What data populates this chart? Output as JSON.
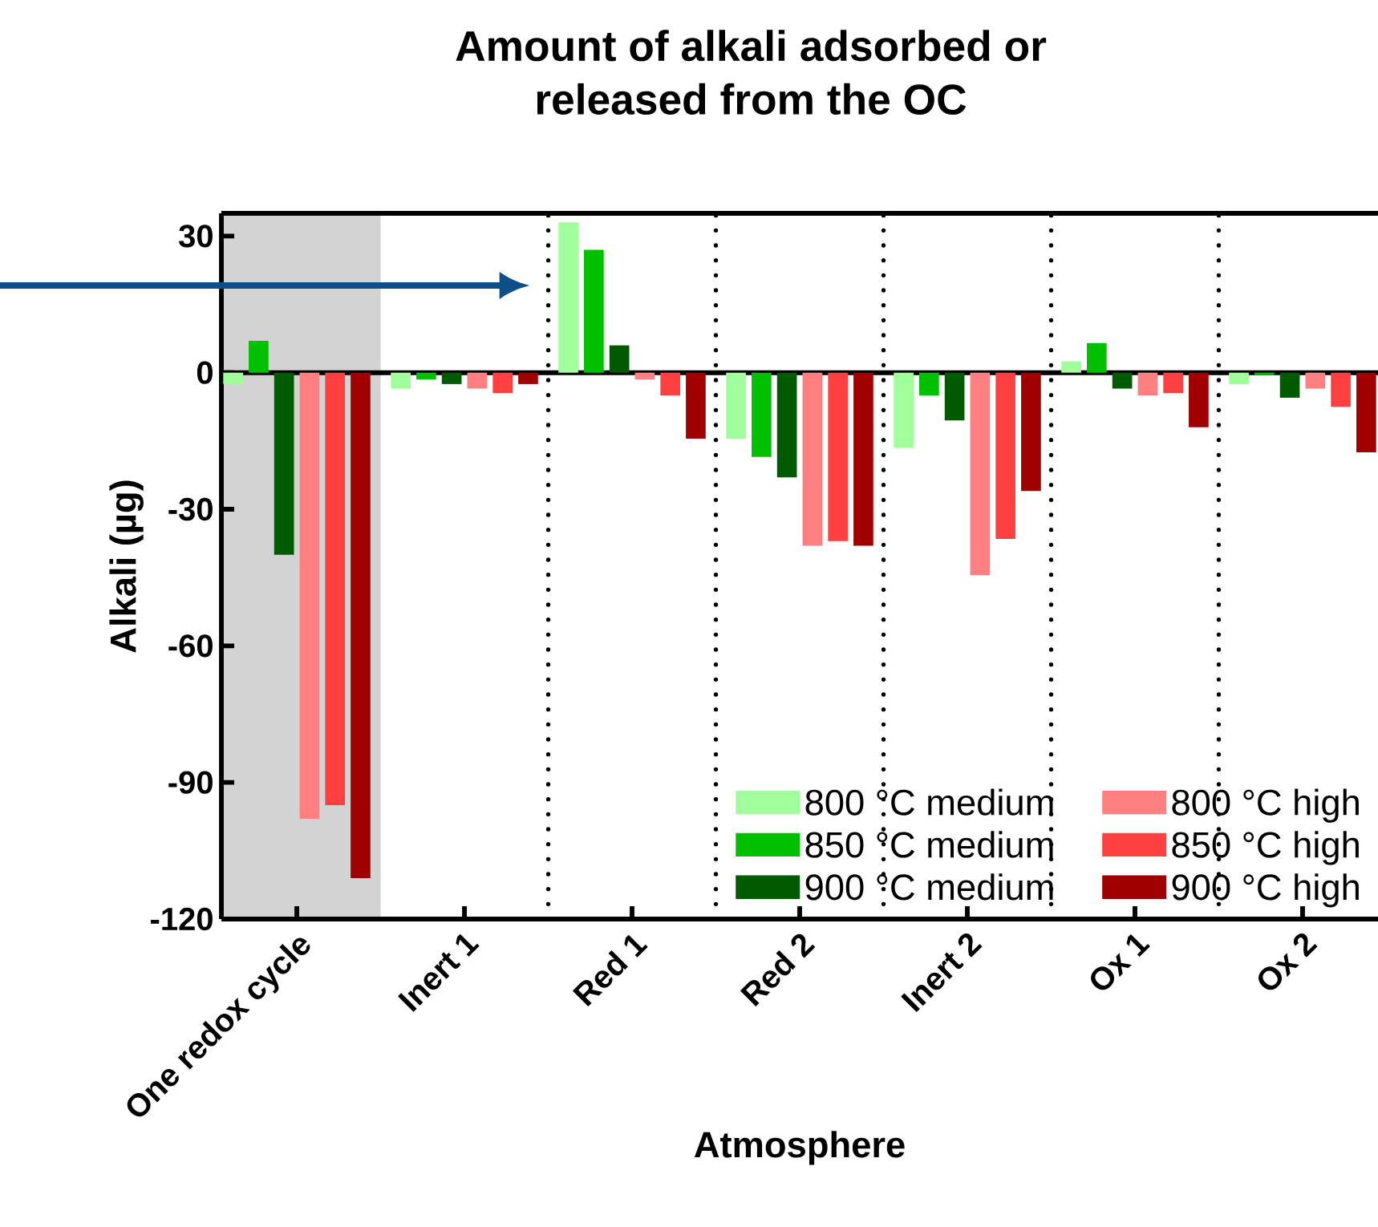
{
  "chart_data": {
    "type": "bar",
    "title": "Amount of alkali adsorbed or\nreleased from the OC",
    "xlabel": "Atmosphere",
    "ylabel": "Alkali (µg)",
    "categories": [
      "One redox cycle",
      "Inert 1",
      "Red 1",
      "Red 2",
      "Inert 2",
      "Ox 1",
      "Ox 2"
    ],
    "series": [
      {
        "name": "800 °C medium",
        "color": "#a0ff9a",
        "values": [
          -2.5,
          -3.5,
          33,
          -14.5,
          -16.5,
          2.5,
          -2.5
        ]
      },
      {
        "name": "850 °C medium",
        "color": "#00c000",
        "values": [
          7,
          -1.5,
          27,
          -18.5,
          -5,
          6.5,
          -0.5
        ]
      },
      {
        "name": "900 °C medium",
        "color": "#005a00",
        "values": [
          -40,
          -2.5,
          6,
          -23,
          -10.5,
          -3.5,
          -5.5
        ]
      },
      {
        "name": "800 °C high",
        "color": "#ff8080",
        "values": [
          -98,
          -3.5,
          -1.5,
          -38,
          -44.5,
          -5,
          -3.5
        ]
      },
      {
        "name": "850 °C high",
        "color": "#ff4040",
        "values": [
          -95,
          -4.5,
          -5,
          -37,
          -36.5,
          -4.5,
          -7.5
        ]
      },
      {
        "name": "900 °C high",
        "color": "#a00000",
        "values": [
          -111,
          -2.5,
          -14.5,
          -38,
          -26,
          -12,
          -17.5
        ]
      }
    ],
    "ylim": [
      -120,
      35
    ],
    "yticks": [
      30,
      0,
      -30,
      -60,
      -90,
      -120
    ],
    "grid": false,
    "legend": "bottom right"
  }
}
